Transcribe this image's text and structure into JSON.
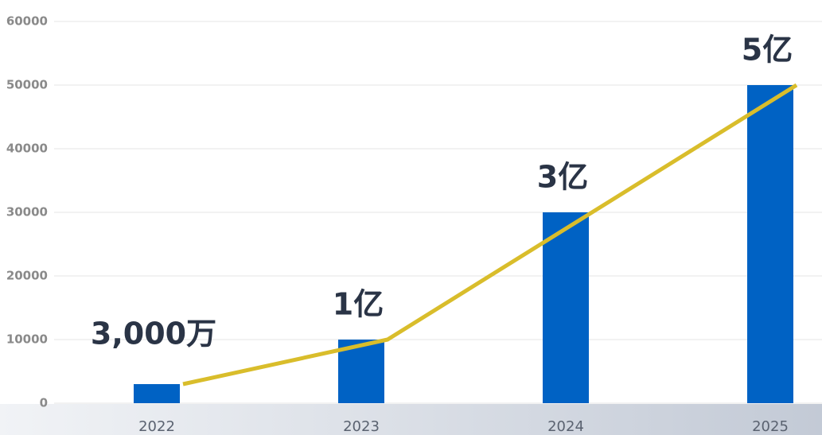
{
  "chart_data": {
    "type": "bar",
    "categories": [
      "2022",
      "2023",
      "2024",
      "2025"
    ],
    "values": [
      3000,
      10000,
      30000,
      50000
    ],
    "value_labels": [
      "3,000万",
      "1亿",
      "3亿",
      "5亿"
    ],
    "color": "#0062c4",
    "line_color": "#d9bd2b",
    "ylim": [
      0,
      60000
    ],
    "yticks": [
      0,
      10000,
      20000,
      30000,
      40000,
      50000,
      60000
    ],
    "grid": true
  }
}
